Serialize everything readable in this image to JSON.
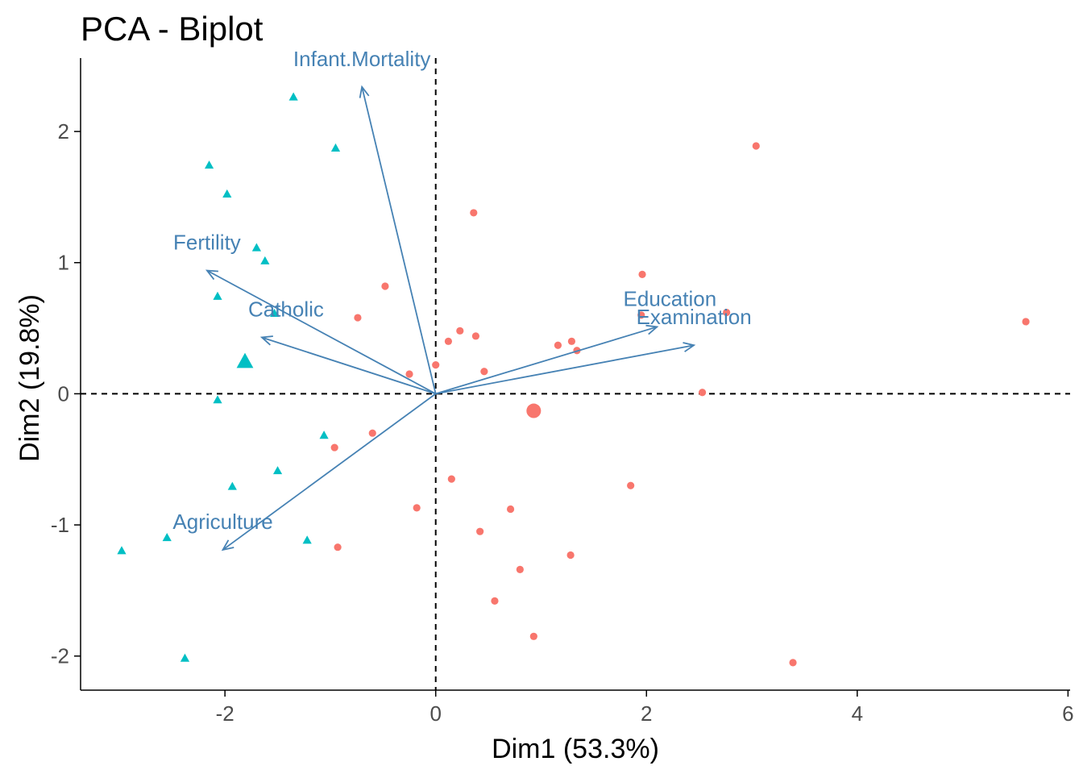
{
  "colors": {
    "group1": "#00BFC4",
    "group2": "#F8766D",
    "arrows": "#4682B4",
    "axis": "#000000",
    "tick_text": "#4d4d4d"
  },
  "chart_data": {
    "type": "scatter",
    "title": "PCA - Biplot",
    "xlabel": "Dim1 (53.3%)",
    "ylabel": "Dim2 (19.8%)",
    "xlim": [
      -3.37,
      6.02
    ],
    "ylim": [
      -2.26,
      2.56
    ],
    "xticks": [
      -2,
      0,
      2,
      4,
      6
    ],
    "yticks": [
      -2,
      -1,
      0,
      1,
      2
    ],
    "xtick_labels": [
      "-2",
      "0",
      "2",
      "4",
      "6"
    ],
    "ytick_labels": [
      "-2",
      "-1",
      "0",
      "1",
      "2"
    ],
    "reference_lines": {
      "x": 0,
      "y": 0,
      "style": "dashed"
    },
    "grid": false,
    "legend": "none",
    "series": [
      {
        "shape": "triangle",
        "color": "#00BFC4",
        "points": [
          {
            "x": -1.35,
            "y": 2.26
          },
          {
            "x": -0.95,
            "y": 1.87
          },
          {
            "x": -2.15,
            "y": 1.74
          },
          {
            "x": -1.98,
            "y": 1.52
          },
          {
            "x": -1.7,
            "y": 1.11
          },
          {
            "x": -1.62,
            "y": 1.01
          },
          {
            "x": -2.07,
            "y": 0.74
          },
          {
            "x": -1.53,
            "y": 0.61
          },
          {
            "x": -2.07,
            "y": -0.05
          },
          {
            "x": -1.06,
            "y": -0.32
          },
          {
            "x": -1.5,
            "y": -0.59
          },
          {
            "x": -1.93,
            "y": -0.71
          },
          {
            "x": -2.55,
            "y": -1.1
          },
          {
            "x": -2.98,
            "y": -1.2
          },
          {
            "x": -1.22,
            "y": -1.12
          },
          {
            "x": -2.38,
            "y": -2.02
          }
        ],
        "centroid": {
          "x": -1.81,
          "y": 0.24
        }
      },
      {
        "shape": "circle",
        "color": "#F8766D",
        "points": [
          {
            "x": 3.04,
            "y": 1.89
          },
          {
            "x": 0.36,
            "y": 1.38
          },
          {
            "x": 1.96,
            "y": 0.91
          },
          {
            "x": -0.48,
            "y": 0.82
          },
          {
            "x": 2.76,
            "y": 0.62
          },
          {
            "x": 1.95,
            "y": 0.6
          },
          {
            "x": 5.6,
            "y": 0.55
          },
          {
            "x": -0.74,
            "y": 0.58
          },
          {
            "x": 0.23,
            "y": 0.48
          },
          {
            "x": 0.38,
            "y": 0.44
          },
          {
            "x": 0.12,
            "y": 0.4
          },
          {
            "x": 1.29,
            "y": 0.4
          },
          {
            "x": 1.16,
            "y": 0.37
          },
          {
            "x": 1.34,
            "y": 0.33
          },
          {
            "x": 0.0,
            "y": 0.22
          },
          {
            "x": 0.46,
            "y": 0.17
          },
          {
            "x": -0.25,
            "y": 0.15
          },
          {
            "x": 2.53,
            "y": 0.01
          },
          {
            "x": -0.6,
            "y": -0.3
          },
          {
            "x": -0.96,
            "y": -0.41
          },
          {
            "x": 0.15,
            "y": -0.65
          },
          {
            "x": 1.85,
            "y": -0.7
          },
          {
            "x": -0.18,
            "y": -0.87
          },
          {
            "x": 0.71,
            "y": -0.88
          },
          {
            "x": 0.42,
            "y": -1.05
          },
          {
            "x": -0.93,
            "y": -1.17
          },
          {
            "x": 1.28,
            "y": -1.23
          },
          {
            "x": 0.8,
            "y": -1.34
          },
          {
            "x": 0.56,
            "y": -1.58
          },
          {
            "x": 0.93,
            "y": -1.85
          },
          {
            "x": 3.39,
            "y": -2.05
          }
        ],
        "centroid": {
          "x": 0.93,
          "y": -0.13
        }
      }
    ],
    "variables": [
      {
        "name": "Infant.Mortality",
        "x": -0.7,
        "y": 2.34
      },
      {
        "name": "Fertility",
        "x": -2.17,
        "y": 0.94
      },
      {
        "name": "Catholic",
        "x": -1.65,
        "y": 0.43
      },
      {
        "name": "Education",
        "x": 2.1,
        "y": 0.51
      },
      {
        "name": "Examination",
        "x": 2.45,
        "y": 0.37
      },
      {
        "name": "Agriculture",
        "x": -2.02,
        "y": -1.19
      }
    ]
  }
}
